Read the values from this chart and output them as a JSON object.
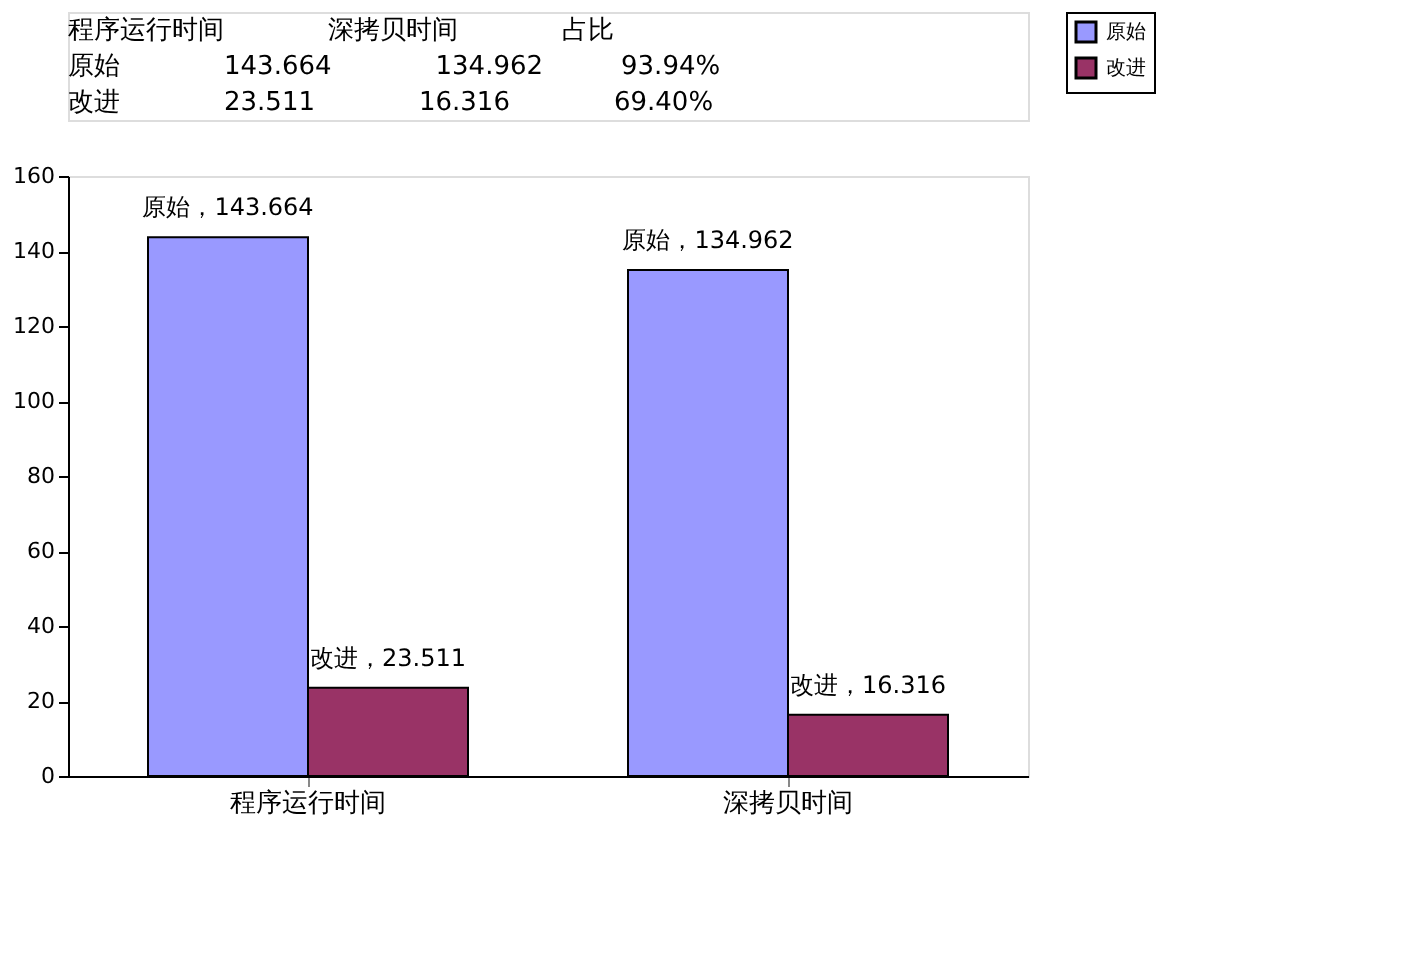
{
  "chart_data": {
    "type": "bar",
    "categories": [
      "程序运行时间",
      "深拷贝时间"
    ],
    "series": [
      {
        "name": "原始",
        "color": "#9999ff",
        "values": [
          143.664,
          134.962
        ],
        "value_labels": [
          "原始，143.664",
          "原始，134.962"
        ]
      },
      {
        "name": "改进",
        "color": "#993366",
        "values": [
          23.511,
          16.316
        ],
        "value_labels": [
          "改进，23.511",
          "改进，16.316"
        ]
      }
    ],
    "ylim": [
      0,
      160
    ],
    "yticks": [
      0,
      20,
      40,
      60,
      80,
      100,
      120,
      140,
      160
    ],
    "grid": false,
    "legend": "right",
    "annotations": [
      "　　　　　程序运行时间　　　　深拷贝时间　　　　占比",
      "原始　　　　143.664　　　　134.962　　　93.94%",
      "改进　　　　23.511　　　　16.316　　　　69.40%"
    ]
  }
}
